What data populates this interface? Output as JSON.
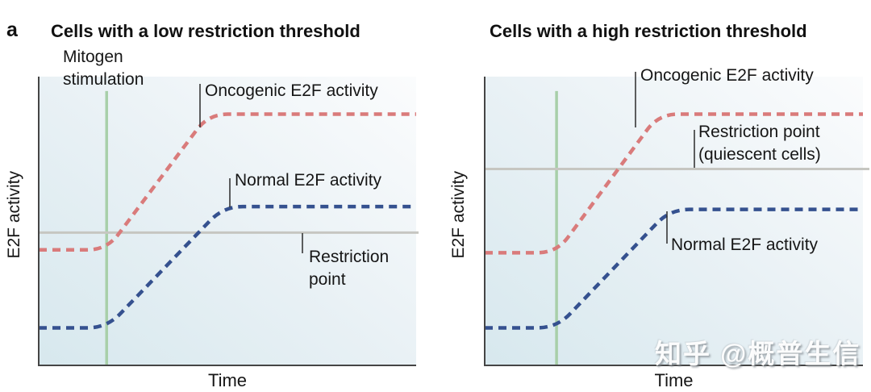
{
  "figure": {
    "panel_letter": "a",
    "watermark": "知乎 @概普生信"
  },
  "colors": {
    "oncogenic": "#d97b7b",
    "normal": "#35518f",
    "mitogen_line": "#a8cfa9",
    "restriction_line": "#c6c6c1",
    "axis": "#454545",
    "leader": "#2b2b2b",
    "bg_start": "#d7e8ee",
    "bg_mid": "#e9f1f5",
    "bg_end": "#fbfcfd"
  },
  "panels": [
    {
      "title": "Cells with a low restriction threshold",
      "ylabel": "E2F activity",
      "xlabel": "Time",
      "labels": {
        "mitogen": "Mitogen\nstimulation",
        "oncogenic": "Oncogenic E2F activity",
        "normal": "Normal E2F activity",
        "restriction": "Restriction\npoint"
      }
    },
    {
      "title": "Cells with a high restriction threshold",
      "ylabel": "E2F activity",
      "xlabel": "Time",
      "labels": {
        "oncogenic": "Oncogenic E2F activity",
        "restriction": "Restriction point\n(quiescent cells)",
        "normal": "Normal E2F activity"
      }
    }
  ],
  "chart_data": [
    {
      "type": "line",
      "title": "Cells with a low restriction threshold",
      "xlabel": "Time",
      "ylabel": "E2F activity",
      "axes_numeric": false,
      "grid": false,
      "legend_position": "inline-callouts",
      "xlim": [
        0,
        1
      ],
      "ylim": [
        0,
        1
      ],
      "series": [
        {
          "name": "Oncogenic E2F activity",
          "style": "dashed",
          "color_key": "oncogenic",
          "x": [
            0,
            0.18,
            0.45,
            1.0
          ],
          "y": [
            0.4,
            0.4,
            0.87,
            0.87
          ]
        },
        {
          "name": "Normal E2F activity",
          "style": "dashed",
          "color_key": "normal",
          "x": [
            0,
            0.18,
            0.49,
            1.0
          ],
          "y": [
            0.13,
            0.13,
            0.55,
            0.55
          ]
        }
      ],
      "annotations": [
        {
          "name": "Mitogen stimulation",
          "type": "vline",
          "x": 0.18,
          "color_key": "mitogen_line"
        },
        {
          "name": "Restriction point",
          "type": "hline",
          "y": 0.46,
          "color_key": "restriction_line"
        }
      ]
    },
    {
      "type": "line",
      "title": "Cells with a high restriction threshold",
      "xlabel": "Time",
      "ylabel": "E2F activity",
      "axes_numeric": false,
      "grid": false,
      "legend_position": "inline-callouts",
      "xlim": [
        0,
        1
      ],
      "ylim": [
        0,
        1
      ],
      "series": [
        {
          "name": "Oncogenic E2F activity",
          "style": "dashed",
          "color_key": "oncogenic",
          "x": [
            0,
            0.19,
            0.46,
            1.0
          ],
          "y": [
            0.39,
            0.39,
            0.87,
            0.87
          ]
        },
        {
          "name": "Normal E2F activity",
          "style": "dashed",
          "color_key": "normal",
          "x": [
            0,
            0.19,
            0.49,
            1.0
          ],
          "y": [
            0.13,
            0.13,
            0.54,
            0.54
          ]
        }
      ],
      "annotations": [
        {
          "name": "Mitogen stimulation",
          "type": "vline",
          "x": 0.19,
          "color_key": "mitogen_line"
        },
        {
          "name": "Restriction point (quiescent cells)",
          "type": "hline",
          "y": 0.68,
          "color_key": "restriction_line"
        }
      ]
    }
  ]
}
